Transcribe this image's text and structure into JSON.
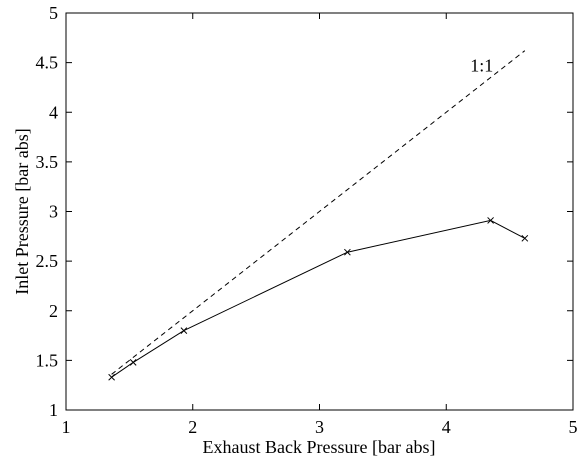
{
  "chart_data": {
    "type": "line",
    "xlabel": "Exhaust Back Pressure [bar abs]",
    "ylabel": "Inlet Pressure [bar abs]",
    "xlim": [
      1,
      5
    ],
    "ylim": [
      1,
      5
    ],
    "xticks": [
      1,
      2,
      3,
      4,
      5
    ],
    "xtick_labels": [
      "1",
      "2",
      "3",
      "4",
      "5"
    ],
    "yticks": [
      1,
      1.5,
      2,
      2.5,
      3,
      3.5,
      4,
      4.5,
      5
    ],
    "ytick_labels": [
      "1",
      "1.5",
      "2",
      "2.5",
      "3",
      "3.5",
      "4",
      "4.5",
      "5"
    ],
    "grid": false,
    "series": [
      {
        "style": "solid",
        "marker": "x",
        "color": "#000000",
        "x": [
          1.36,
          1.53,
          1.93,
          3.22,
          4.35,
          4.62
        ],
        "y": [
          1.33,
          1.48,
          1.8,
          2.59,
          2.91,
          2.73
        ]
      },
      {
        "style": "dashed",
        "marker": "none",
        "color": "#000000",
        "x": [
          1.36,
          4.62
        ],
        "y": [
          1.36,
          4.62
        ]
      }
    ],
    "annotations": [
      {
        "text": "1:1",
        "x": 4.28,
        "y": 4.47
      }
    ]
  }
}
